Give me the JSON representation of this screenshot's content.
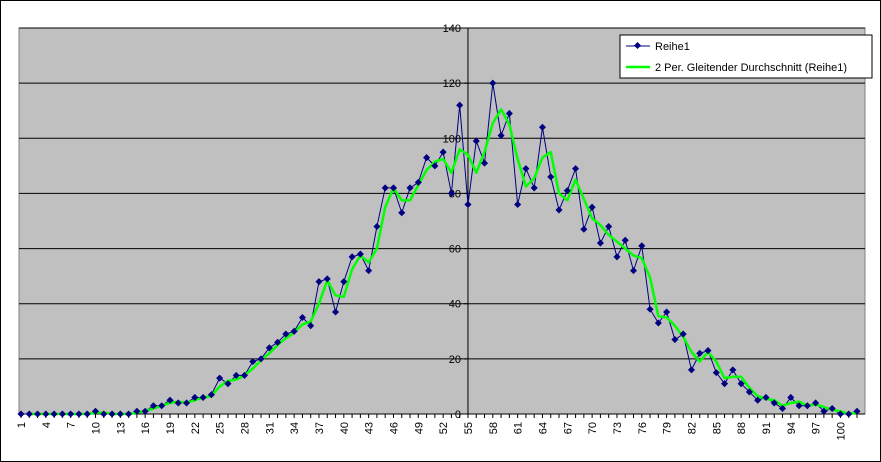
{
  "chart_data": {
    "type": "line",
    "title": "",
    "xlabel": "",
    "ylabel": "",
    "ylim": [
      0,
      140
    ],
    "y_ticks": [
      0,
      20,
      40,
      60,
      80,
      100,
      120,
      140
    ],
    "x_tick_labels": [
      "1",
      "4",
      "7",
      "10",
      "13",
      "16",
      "19",
      "22",
      "25",
      "28",
      "31",
      "34",
      "37",
      "40",
      "43",
      "46",
      "49",
      "52",
      "55",
      "58",
      "61",
      "64",
      "67",
      "70",
      "73",
      "76",
      "79",
      "82",
      "85",
      "88",
      "91",
      "94",
      "97",
      "100"
    ],
    "grid": "horizontal",
    "legend_position": "top-right",
    "plot_background": "#c0c0c0",
    "x": [
      1,
      2,
      3,
      4,
      5,
      6,
      7,
      8,
      9,
      10,
      11,
      12,
      13,
      14,
      15,
      16,
      17,
      18,
      19,
      20,
      21,
      22,
      23,
      24,
      25,
      26,
      27,
      28,
      29,
      30,
      31,
      32,
      33,
      34,
      35,
      36,
      37,
      38,
      39,
      40,
      41,
      42,
      43,
      44,
      45,
      46,
      47,
      48,
      49,
      50,
      51,
      52,
      53,
      54,
      55,
      56,
      57,
      58,
      59,
      60,
      61,
      62,
      63,
      64,
      65,
      66,
      67,
      68,
      69,
      70,
      71,
      72,
      73,
      74,
      75,
      76,
      77,
      78,
      79,
      80,
      81,
      82,
      83,
      84,
      85,
      86,
      87,
      88,
      89,
      90,
      91,
      92,
      93,
      94,
      95,
      96,
      97,
      98,
      99,
      100,
      101,
      102
    ],
    "series": [
      {
        "name": "Reihe1",
        "color": "#000080",
        "marker": "diamond",
        "values": [
          0,
          0,
          0,
          0,
          0,
          0,
          0,
          0,
          0,
          1,
          0,
          0,
          0,
          0,
          1,
          1,
          3,
          3,
          5,
          4,
          4,
          6,
          6,
          7,
          13,
          11,
          14,
          14,
          19,
          20,
          24,
          26,
          29,
          30,
          35,
          32,
          48,
          49,
          37,
          48,
          57,
          58,
          52,
          68,
          82,
          82,
          73,
          82,
          84,
          93,
          90,
          95,
          80,
          112,
          76,
          99,
          91,
          120,
          101,
          109,
          76,
          89,
          82,
          104,
          86,
          74,
          81,
          89,
          67,
          75,
          62,
          68,
          57,
          63,
          52,
          61,
          38,
          33,
          37,
          27,
          29,
          16,
          22,
          23,
          15,
          11,
          16,
          11,
          8,
          5,
          6,
          4,
          2,
          6,
          3,
          3,
          4,
          1,
          2,
          0,
          0,
          1
        ]
      },
      {
        "name": "2 Per. Gleitender Durchschnitt (Reihe1)",
        "color": "#00ff00",
        "values": [
          null,
          0,
          0,
          0,
          0,
          0,
          0,
          0,
          0,
          0.5,
          0.5,
          0,
          0,
          0,
          0.5,
          1,
          2,
          3,
          4,
          4.5,
          4,
          5,
          6,
          6.5,
          10,
          12,
          12.5,
          14,
          16.5,
          19.5,
          22,
          25,
          27.5,
          29.5,
          32.5,
          33.5,
          40,
          48.5,
          43,
          42.5,
          52.5,
          57.5,
          55,
          60,
          75,
          82,
          77.5,
          77.5,
          83,
          88.5,
          91.5,
          92.5,
          87.5,
          96,
          94,
          87.5,
          95,
          105.5,
          110.5,
          105,
          92.5,
          82.5,
          85.5,
          93,
          95,
          80,
          77.5,
          85,
          78,
          71,
          68.5,
          65,
          62.5,
          60,
          57.5,
          56.5,
          49.5,
          35.5,
          35,
          32,
          28,
          22.5,
          19,
          22.5,
          19,
          13,
          13.5,
          13.5,
          9.5,
          6.5,
          5.5,
          5,
          3,
          4,
          4.5,
          3,
          3.5,
          2.5,
          1.5,
          1,
          0,
          0.5
        ]
      }
    ]
  }
}
